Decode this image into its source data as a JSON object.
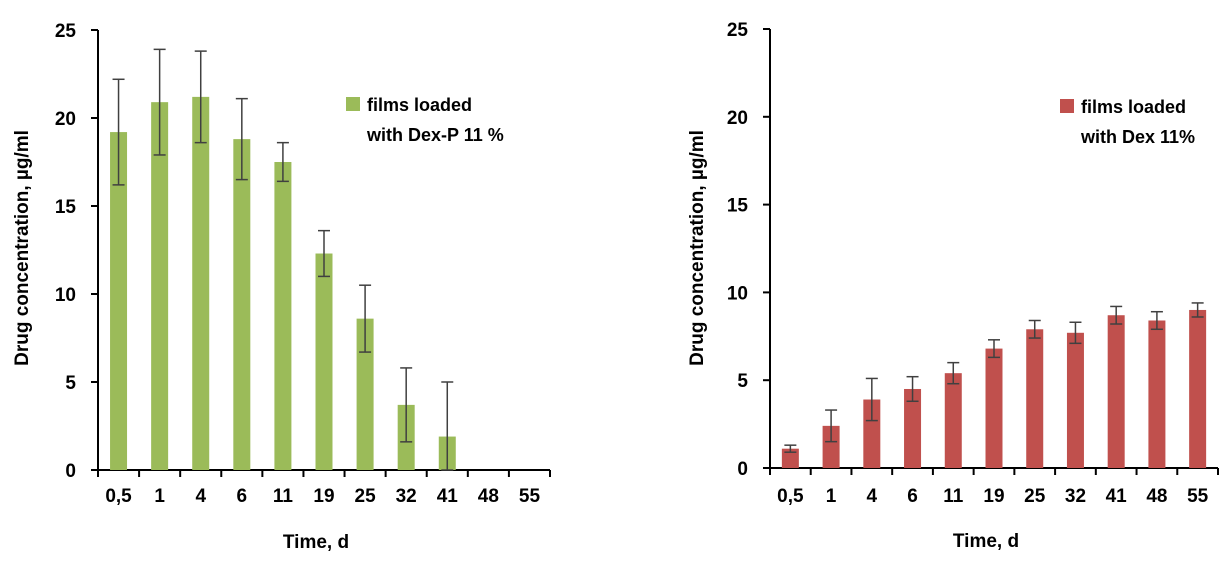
{
  "chart_data": [
    {
      "type": "bar",
      "xlabel": "Time, d",
      "ylabel": "Drug concentration, µg/ml",
      "ylim": [
        0,
        25
      ],
      "yticks": [
        0,
        5,
        10,
        15,
        20,
        25
      ],
      "categories": [
        "0,5",
        "1",
        "4",
        "6",
        "11",
        "19",
        "25",
        "32",
        "41",
        "48",
        "55"
      ],
      "series": [
        {
          "name": "films loaded with Dex-P 11 %",
          "legend_lines": [
            "films loaded",
            "with Dex-P 11 %"
          ],
          "color": "#9BBB59",
          "values": [
            19.2,
            20.9,
            21.2,
            18.8,
            17.5,
            12.3,
            8.6,
            3.7,
            1.9,
            null,
            null
          ],
          "errors": [
            3.0,
            3.0,
            2.6,
            2.3,
            1.1,
            1.3,
            1.9,
            2.1,
            3.1,
            null,
            null
          ]
        }
      ],
      "legend_position": "top-right",
      "grid": false
    },
    {
      "type": "bar",
      "xlabel": "Time, d",
      "ylabel": "Drug concentration, µg/ml",
      "ylim": [
        0,
        25
      ],
      "yticks": [
        0,
        5,
        10,
        15,
        20,
        25
      ],
      "categories": [
        "0,5",
        "1",
        "4",
        "6",
        "11",
        "19",
        "25",
        "32",
        "41",
        "48",
        "55"
      ],
      "series": [
        {
          "name": "films loaded with Dex 11%",
          "legend_lines": [
            "films loaded",
            "with Dex 11%"
          ],
          "color": "#C0504D",
          "values": [
            1.1,
            2.4,
            3.9,
            4.5,
            5.4,
            6.8,
            7.9,
            7.7,
            8.7,
            8.4,
            9.0
          ],
          "errors": [
            0.2,
            0.9,
            1.2,
            0.7,
            0.6,
            0.5,
            0.5,
            0.6,
            0.5,
            0.5,
            0.4
          ]
        }
      ],
      "legend_position": "top-right",
      "grid": false
    }
  ]
}
